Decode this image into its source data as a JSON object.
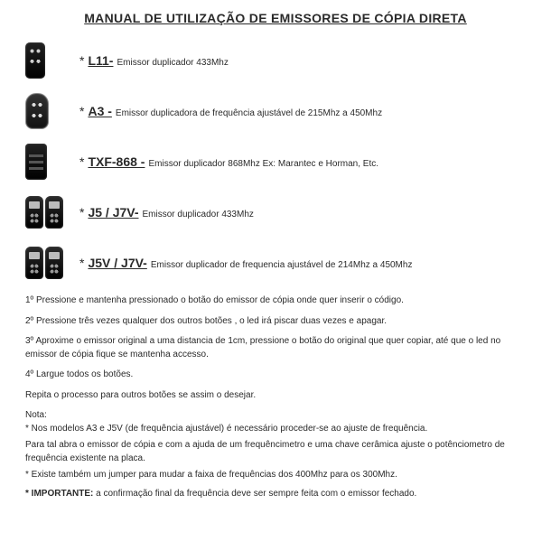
{
  "title": "MANUAL DE UTILIZAÇÃO DE EMISSORES DE CÓPIA DIRETA",
  "products": [
    {
      "model": "L11-",
      "asterisk": "*",
      "desc": "Emissor duplicador 433Mhz",
      "remote_class": "l11",
      "remote_count": 1
    },
    {
      "model": "A3 -",
      "asterisk": "*",
      "desc": "Emissor duplicadora de frequência ajustável de 215Mhz a 450Mhz",
      "remote_class": "a3",
      "remote_count": 1
    },
    {
      "model": "TXF-868 -",
      "asterisk": "*",
      "desc": "Emissor duplicador  868Mhz Ex:  Marantec e Horman, Etc.",
      "remote_class": "txf",
      "remote_count": 1
    },
    {
      "model": "J5 / J7V-",
      "asterisk": "*",
      "desc": "Emissor duplicador 433Mhz",
      "remote_class": "key",
      "remote_count": 2
    },
    {
      "model": "J5V / J7V-",
      "asterisk": "*",
      "desc": "Emissor duplicador de frequencia ajustável de 214Mhz a 450Mhz",
      "remote_class": "key",
      "remote_count": 2
    }
  ],
  "steps": [
    "1º Pressione e mantenha pressionado o botão do emissor de cópia onde quer inserir o código.",
    "2º Pressione três vezes qualquer dos outros botões , o led irá piscar duas vezes e apagar.",
    "3º Aproxime o emissor original a uma distancia de  1cm, pressione o botão do original que quer copiar, até que o led no emissor de cópia fique se mantenha accesso.",
    " 4º Largue todos os botões.",
    " Repita o processo para outros botões se assim o  desejar."
  ],
  "nota_label": "Nota:",
  "notas": [
    "* Nos modelos A3 e J5V (de frequência ajustável) é necessário proceder-se  ao ajuste de frequência.",
    " Para tal abra o emissor de cópia e com a ajuda de um frequêncimetro e uma chave cerâmica ajuste o potênciometro de frequência existente na placa.",
    "* Existe também um jumper para mudar a faixa de frequências dos 400Mhz para os 300Mhz."
  ],
  "important_label": "* IMPORTANTE:",
  "important_text": "  a confirmação final da frequência deve ser sempre feita com o emissor fechado.",
  "colors": {
    "text": "#2a2a2a",
    "background": "#ffffff"
  },
  "typography": {
    "title_fontsize": 14,
    "model_fontsize": 14,
    "desc_fontsize": 10,
    "body_fontsize": 10
  }
}
